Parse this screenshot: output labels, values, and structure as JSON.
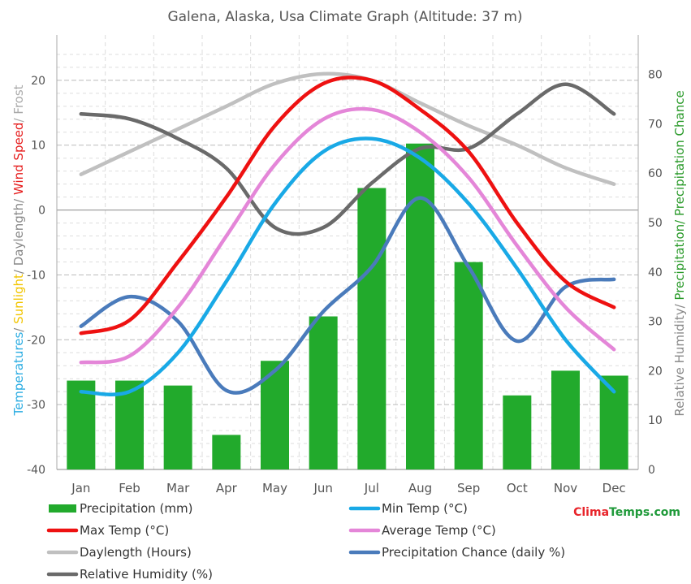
{
  "chart_data": {
    "type": "bar+line",
    "title": "Galena, Alaska, Usa Climate Graph (Altitude: 37 m)",
    "categories": [
      "Jan",
      "Feb",
      "Mar",
      "Apr",
      "May",
      "Jun",
      "Jul",
      "Aug",
      "Sep",
      "Oct",
      "Nov",
      "Dec"
    ],
    "left_axis": {
      "label_parts": [
        {
          "text": "Temperatures",
          "color": "#2aace2"
        },
        {
          "text": "/ ",
          "color": "#888888"
        },
        {
          "text": "Sunlight",
          "color": "#f2c500"
        },
        {
          "text": "/ Daylength/ ",
          "color": "#888888"
        },
        {
          "text": "Wind Speed",
          "color": "#e61c1c"
        },
        {
          "text": "/ Frost",
          "color": "#aaaaaa"
        }
      ],
      "ylim": [
        -40,
        27
      ],
      "ticks": [
        20,
        10,
        0,
        -10,
        -20,
        -30,
        -40
      ]
    },
    "right_axis": {
      "label_parts": [
        {
          "text": "Relative Humidity/ ",
          "color": "#888888"
        },
        {
          "text": "Precipitation/ Precipitation Chance",
          "color": "#2a9a2a"
        }
      ],
      "ylim": [
        0,
        88
      ],
      "ticks": [
        80,
        70,
        60,
        50,
        40,
        30,
        20,
        10,
        0
      ]
    },
    "series": [
      {
        "name": "Precipitation (mm)",
        "kind": "bar",
        "axis": "right",
        "color": "#22aa2c",
        "values": [
          18,
          18,
          17,
          7,
          22,
          31,
          57,
          66,
          42,
          15,
          20,
          19
        ]
      },
      {
        "name": "Min Temp (°C)",
        "kind": "line",
        "axis": "left",
        "color": "#19a9e6",
        "values": [
          -28,
          -28,
          -22,
          -11,
          1,
          9,
          11,
          8,
          1,
          -9,
          -20,
          -28
        ]
      },
      {
        "name": "Max Temp (°C)",
        "kind": "line",
        "axis": "left",
        "color": "#ee1111",
        "values": [
          -19,
          -17,
          -8,
          2,
          13,
          19.5,
          20,
          15.5,
          9,
          -2,
          -11,
          -15
        ]
      },
      {
        "name": "Average Temp (°C)",
        "kind": "line",
        "axis": "left",
        "color": "#e486d8",
        "values": [
          -23.5,
          -22.5,
          -15,
          -4,
          7,
          14,
          15.5,
          12,
          5,
          -5.5,
          -15,
          -21.5
        ]
      },
      {
        "name": "Daylength (Hours)",
        "kind": "line",
        "axis": "left",
        "color": "#c0c0c0",
        "values": [
          5.5,
          9,
          12.5,
          16,
          19.5,
          21,
          20,
          16.5,
          13,
          10,
          6.5,
          4
        ]
      },
      {
        "name": "Precipitation Chance (daily %)",
        "kind": "line",
        "axis": "right",
        "color": "#4a7bbb",
        "values": [
          29,
          35,
          30,
          16,
          20,
          32,
          41,
          55,
          41,
          26,
          37,
          38.5
        ]
      },
      {
        "name": "Relative Humidity (%)",
        "kind": "line",
        "axis": "right",
        "color": "#6a6a6a",
        "values": [
          72,
          71,
          67,
          61,
          49,
          49,
          58,
          65,
          65,
          72,
          78,
          72
        ]
      }
    ],
    "legend": {
      "placement": "bottom",
      "items": [
        {
          "label": "Precipitation (mm)",
          "color": "#22aa2c",
          "kind": "bar"
        },
        {
          "label": "Min Temp (°C)",
          "color": "#19a9e6",
          "kind": "line"
        },
        {
          "label": "Max Temp (°C)",
          "color": "#ee1111",
          "kind": "line"
        },
        {
          "label": "Average Temp (°C)",
          "color": "#e486d8",
          "kind": "line"
        },
        {
          "label": "Daylength (Hours)",
          "color": "#c0c0c0",
          "kind": "line"
        },
        {
          "label": "Precipitation Chance (daily %)",
          "color": "#4a7bbb",
          "kind": "line"
        },
        {
          "label": "Relative Humidity (%)",
          "color": "#6a6a6a",
          "kind": "line"
        }
      ]
    },
    "grid": true
  },
  "brand": {
    "part1": "Clima",
    "part2": "Temps",
    "part3": ".com",
    "color1": "#e8242a",
    "color2": "#1f9a3a"
  }
}
